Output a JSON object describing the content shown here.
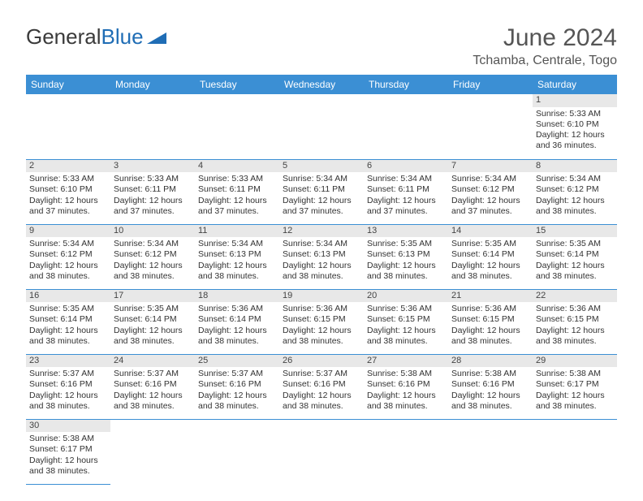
{
  "logo": {
    "text1": "General",
    "text2": "Blue"
  },
  "title": "June 2024",
  "location": "Tchamba, Centrale, Togo",
  "colors": {
    "header_bg": "#3b8fd4",
    "header_fg": "#ffffff",
    "border": "#3b8fd4",
    "daynum_bg": "#e8e8e8",
    "logo_gray": "#3a3a3a",
    "logo_blue": "#1f6db5",
    "text": "#333333",
    "title": "#555555"
  },
  "typography": {
    "title_fontsize": 30,
    "location_fontsize": 16,
    "header_fontsize": 12,
    "cell_fontsize": 10.5,
    "daynum_fontsize": 11
  },
  "weekdays": [
    "Sunday",
    "Monday",
    "Tuesday",
    "Wednesday",
    "Thursday",
    "Friday",
    "Saturday"
  ],
  "weeks": [
    [
      null,
      null,
      null,
      null,
      null,
      null,
      {
        "day": "1",
        "sunrise": "Sunrise: 5:33 AM",
        "sunset": "Sunset: 6:10 PM",
        "daylight1": "Daylight: 12 hours",
        "daylight2": "and 36 minutes."
      }
    ],
    [
      {
        "day": "2",
        "sunrise": "Sunrise: 5:33 AM",
        "sunset": "Sunset: 6:10 PM",
        "daylight1": "Daylight: 12 hours",
        "daylight2": "and 37 minutes."
      },
      {
        "day": "3",
        "sunrise": "Sunrise: 5:33 AM",
        "sunset": "Sunset: 6:11 PM",
        "daylight1": "Daylight: 12 hours",
        "daylight2": "and 37 minutes."
      },
      {
        "day": "4",
        "sunrise": "Sunrise: 5:33 AM",
        "sunset": "Sunset: 6:11 PM",
        "daylight1": "Daylight: 12 hours",
        "daylight2": "and 37 minutes."
      },
      {
        "day": "5",
        "sunrise": "Sunrise: 5:34 AM",
        "sunset": "Sunset: 6:11 PM",
        "daylight1": "Daylight: 12 hours",
        "daylight2": "and 37 minutes."
      },
      {
        "day": "6",
        "sunrise": "Sunrise: 5:34 AM",
        "sunset": "Sunset: 6:11 PM",
        "daylight1": "Daylight: 12 hours",
        "daylight2": "and 37 minutes."
      },
      {
        "day": "7",
        "sunrise": "Sunrise: 5:34 AM",
        "sunset": "Sunset: 6:12 PM",
        "daylight1": "Daylight: 12 hours",
        "daylight2": "and 37 minutes."
      },
      {
        "day": "8",
        "sunrise": "Sunrise: 5:34 AM",
        "sunset": "Sunset: 6:12 PM",
        "daylight1": "Daylight: 12 hours",
        "daylight2": "and 38 minutes."
      }
    ],
    [
      {
        "day": "9",
        "sunrise": "Sunrise: 5:34 AM",
        "sunset": "Sunset: 6:12 PM",
        "daylight1": "Daylight: 12 hours",
        "daylight2": "and 38 minutes."
      },
      {
        "day": "10",
        "sunrise": "Sunrise: 5:34 AM",
        "sunset": "Sunset: 6:12 PM",
        "daylight1": "Daylight: 12 hours",
        "daylight2": "and 38 minutes."
      },
      {
        "day": "11",
        "sunrise": "Sunrise: 5:34 AM",
        "sunset": "Sunset: 6:13 PM",
        "daylight1": "Daylight: 12 hours",
        "daylight2": "and 38 minutes."
      },
      {
        "day": "12",
        "sunrise": "Sunrise: 5:34 AM",
        "sunset": "Sunset: 6:13 PM",
        "daylight1": "Daylight: 12 hours",
        "daylight2": "and 38 minutes."
      },
      {
        "day": "13",
        "sunrise": "Sunrise: 5:35 AM",
        "sunset": "Sunset: 6:13 PM",
        "daylight1": "Daylight: 12 hours",
        "daylight2": "and 38 minutes."
      },
      {
        "day": "14",
        "sunrise": "Sunrise: 5:35 AM",
        "sunset": "Sunset: 6:14 PM",
        "daylight1": "Daylight: 12 hours",
        "daylight2": "and 38 minutes."
      },
      {
        "day": "15",
        "sunrise": "Sunrise: 5:35 AM",
        "sunset": "Sunset: 6:14 PM",
        "daylight1": "Daylight: 12 hours",
        "daylight2": "and 38 minutes."
      }
    ],
    [
      {
        "day": "16",
        "sunrise": "Sunrise: 5:35 AM",
        "sunset": "Sunset: 6:14 PM",
        "daylight1": "Daylight: 12 hours",
        "daylight2": "and 38 minutes."
      },
      {
        "day": "17",
        "sunrise": "Sunrise: 5:35 AM",
        "sunset": "Sunset: 6:14 PM",
        "daylight1": "Daylight: 12 hours",
        "daylight2": "and 38 minutes."
      },
      {
        "day": "18",
        "sunrise": "Sunrise: 5:36 AM",
        "sunset": "Sunset: 6:14 PM",
        "daylight1": "Daylight: 12 hours",
        "daylight2": "and 38 minutes."
      },
      {
        "day": "19",
        "sunrise": "Sunrise: 5:36 AM",
        "sunset": "Sunset: 6:15 PM",
        "daylight1": "Daylight: 12 hours",
        "daylight2": "and 38 minutes."
      },
      {
        "day": "20",
        "sunrise": "Sunrise: 5:36 AM",
        "sunset": "Sunset: 6:15 PM",
        "daylight1": "Daylight: 12 hours",
        "daylight2": "and 38 minutes."
      },
      {
        "day": "21",
        "sunrise": "Sunrise: 5:36 AM",
        "sunset": "Sunset: 6:15 PM",
        "daylight1": "Daylight: 12 hours",
        "daylight2": "and 38 minutes."
      },
      {
        "day": "22",
        "sunrise": "Sunrise: 5:36 AM",
        "sunset": "Sunset: 6:15 PM",
        "daylight1": "Daylight: 12 hours",
        "daylight2": "and 38 minutes."
      }
    ],
    [
      {
        "day": "23",
        "sunrise": "Sunrise: 5:37 AM",
        "sunset": "Sunset: 6:16 PM",
        "daylight1": "Daylight: 12 hours",
        "daylight2": "and 38 minutes."
      },
      {
        "day": "24",
        "sunrise": "Sunrise: 5:37 AM",
        "sunset": "Sunset: 6:16 PM",
        "daylight1": "Daylight: 12 hours",
        "daylight2": "and 38 minutes."
      },
      {
        "day": "25",
        "sunrise": "Sunrise: 5:37 AM",
        "sunset": "Sunset: 6:16 PM",
        "daylight1": "Daylight: 12 hours",
        "daylight2": "and 38 minutes."
      },
      {
        "day": "26",
        "sunrise": "Sunrise: 5:37 AM",
        "sunset": "Sunset: 6:16 PM",
        "daylight1": "Daylight: 12 hours",
        "daylight2": "and 38 minutes."
      },
      {
        "day": "27",
        "sunrise": "Sunrise: 5:38 AM",
        "sunset": "Sunset: 6:16 PM",
        "daylight1": "Daylight: 12 hours",
        "daylight2": "and 38 minutes."
      },
      {
        "day": "28",
        "sunrise": "Sunrise: 5:38 AM",
        "sunset": "Sunset: 6:16 PM",
        "daylight1": "Daylight: 12 hours",
        "daylight2": "and 38 minutes."
      },
      {
        "day": "29",
        "sunrise": "Sunrise: 5:38 AM",
        "sunset": "Sunset: 6:17 PM",
        "daylight1": "Daylight: 12 hours",
        "daylight2": "and 38 minutes."
      }
    ],
    [
      {
        "day": "30",
        "sunrise": "Sunrise: 5:38 AM",
        "sunset": "Sunset: 6:17 PM",
        "daylight1": "Daylight: 12 hours",
        "daylight2": "and 38 minutes."
      },
      null,
      null,
      null,
      null,
      null,
      null
    ]
  ]
}
